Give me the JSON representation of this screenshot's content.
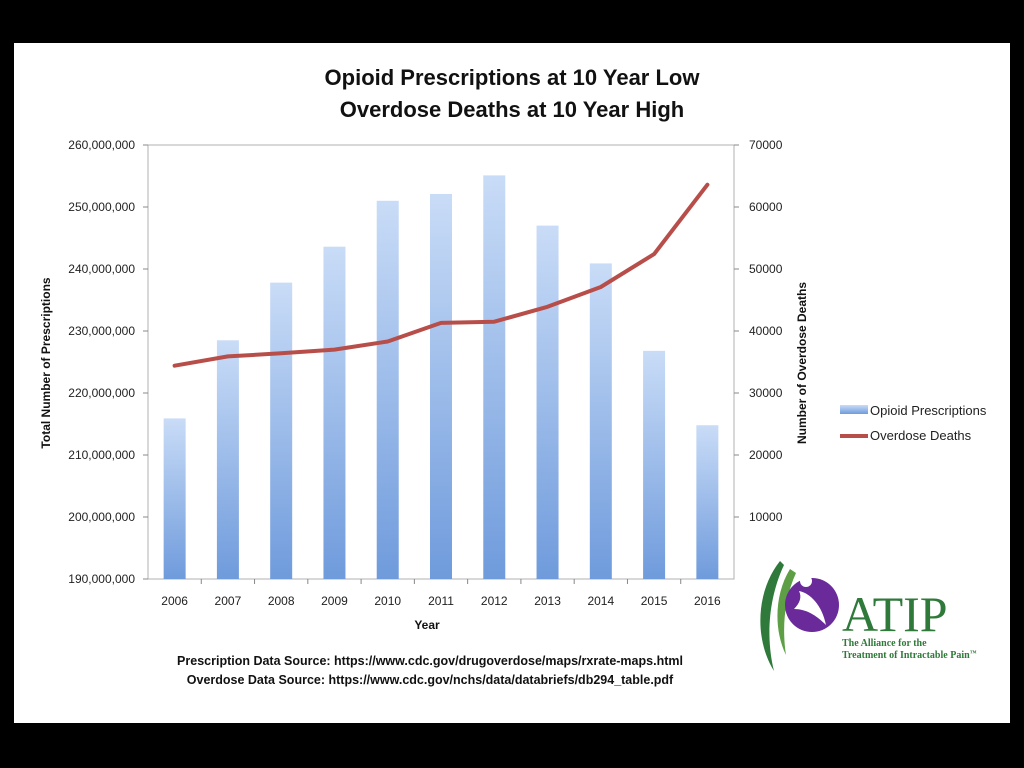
{
  "chart_data": {
    "type": "bar",
    "title_lines": [
      "Opioid Prescriptions at 10 Year Low",
      "Overdose Deaths at 10 Year High"
    ],
    "xlabel": "Year",
    "ylabel": "Total Number of Prescriptions",
    "y2label": "Number of Overdose Deaths",
    "categories": [
      "2006",
      "2007",
      "2008",
      "2009",
      "2010",
      "2011",
      "2012",
      "2013",
      "2014",
      "2015",
      "2016"
    ],
    "ylim": [
      190000000,
      260000000
    ],
    "y_ticks": [
      190000000,
      200000000,
      210000000,
      220000000,
      230000000,
      240000000,
      250000000,
      260000000
    ],
    "y_tick_labels": [
      "190,000,000",
      "200,000,000",
      "210,000,000",
      "220,000,000",
      "230,000,000",
      "240,000,000",
      "250,000,000",
      "260,000,000"
    ],
    "y2lim": [
      0,
      70000
    ],
    "y2_ticks": [
      10000,
      20000,
      30000,
      40000,
      50000,
      60000,
      70000
    ],
    "y2_tick_labels": [
      "10000",
      "20000",
      "30000",
      "40000",
      "50000",
      "60000",
      "70000"
    ],
    "series": [
      {
        "name": "Opioid Prescriptions",
        "type": "bar",
        "axis": "left",
        "color": "#6f9bdc",
        "values": [
          215900000,
          228500000,
          237800000,
          243600000,
          251000000,
          252100000,
          255100000,
          247000000,
          240900000,
          226800000,
          214800000
        ]
      },
      {
        "name": "Overdose Deaths",
        "type": "line",
        "axis": "right",
        "color": "#b84e4a",
        "values": [
          34400,
          35900,
          36400,
          37000,
          38300,
          41300,
          41500,
          43900,
          47100,
          52400,
          63600
        ]
      }
    ],
    "legend": "right",
    "grid": false
  },
  "footer": {
    "prescription_source": "Prescription Data Source:  https://www.cdc.gov/drugoverdose/maps/rxrate-maps.html",
    "overdose_source": "Overdose Data Source:  https://www.cdc.gov/nchs/data/databriefs/db294_table.pdf"
  },
  "logo": {
    "name": "ATIP",
    "subtitle_line1": "The Alliance for the",
    "subtitle_line2": "Treatment of Intractable Pain",
    "mark": "™",
    "colors": {
      "purple": "#6a2a9a",
      "green": "#2f7a3a"
    }
  }
}
